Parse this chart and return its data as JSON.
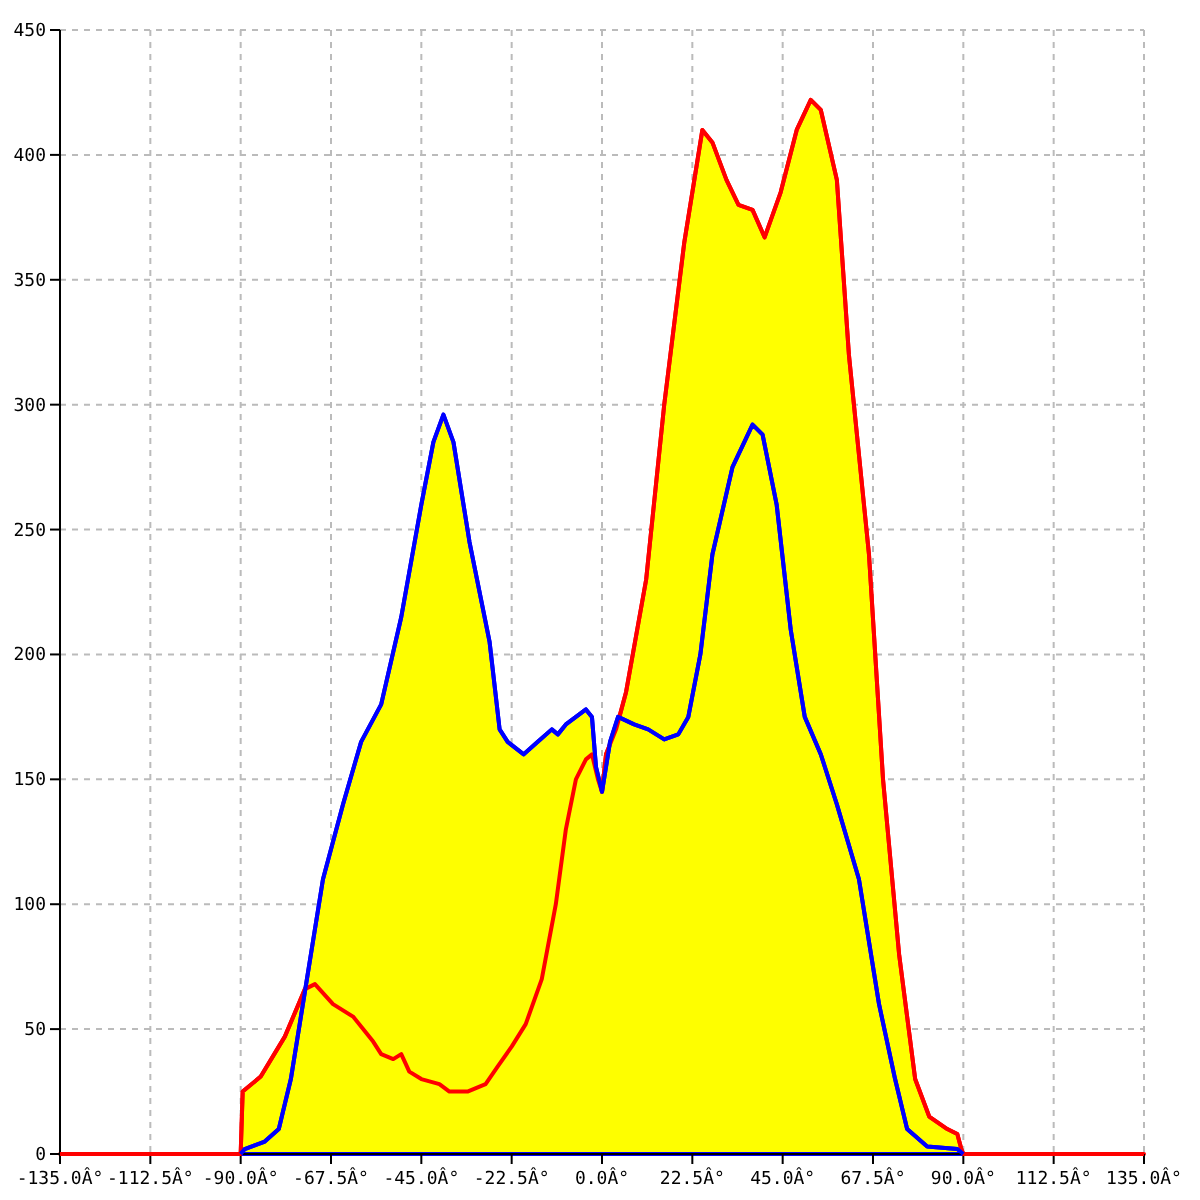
{
  "chart_data": {
    "type": "area",
    "xlim": [
      -135,
      135
    ],
    "ylim": [
      0,
      450
    ],
    "xticks": [
      {
        "value": -135,
        "label": "-135.0Â°"
      },
      {
        "value": -112.5,
        "label": "-112.5Â°"
      },
      {
        "value": -90,
        "label": "-90.0Â°"
      },
      {
        "value": -67.5,
        "label": "-67.5Â°"
      },
      {
        "value": -45,
        "label": "-45.0Â°"
      },
      {
        "value": -22.5,
        "label": "-22.5Â°"
      },
      {
        "value": 0,
        "label": "0.0Â°"
      },
      {
        "value": 22.5,
        "label": "22.5Â°"
      },
      {
        "value": 45,
        "label": "45.0Â°"
      },
      {
        "value": 67.5,
        "label": "67.5Â°"
      },
      {
        "value": 90,
        "label": "90.0Â°"
      },
      {
        "value": 112.5,
        "label": "112.5Â°"
      },
      {
        "value": 135,
        "label": "135.0Â°"
      }
    ],
    "yticks": [
      0,
      50,
      100,
      150,
      200,
      250,
      300,
      350,
      400,
      450
    ],
    "grid": true,
    "line_style": "solid",
    "series": [
      {
        "color": "#ff0000",
        "x": [
          -135,
          -90,
          -89.5,
          -85,
          -79,
          -74,
          -71.5,
          -67,
          -62,
          -57,
          -55,
          -52,
          -50,
          -48,
          -45,
          -40.5,
          -38,
          -33.5,
          -29,
          -26,
          -22.5,
          -19,
          -15,
          -11.5,
          -9,
          -6.5,
          -4,
          -2.5,
          -1,
          0,
          1,
          3.5,
          6,
          11,
          15.5,
          20.5,
          25,
          27.5,
          31,
          34,
          37.5,
          40.5,
          44.5,
          48.5,
          52,
          54.5,
          58.5,
          61.5,
          66.5,
          70,
          74,
          78,
          81.5,
          86,
          88.5,
          89.5,
          90,
          135
        ],
        "values": [
          0,
          0,
          25,
          31,
          47,
          66,
          68,
          60,
          55,
          45,
          40,
          38,
          40,
          33,
          30,
          28,
          25,
          25,
          28,
          35,
          43,
          52,
          70,
          100,
          130,
          150,
          158,
          160,
          150,
          145,
          160,
          170,
          185,
          230,
          300,
          365,
          410,
          405,
          390,
          380,
          378,
          367,
          385,
          410,
          422,
          418,
          390,
          320,
          240,
          150,
          80,
          30,
          15,
          10,
          8,
          2,
          0,
          0
        ]
      },
      {
        "color": "#0000ff",
        "x": [
          -90,
          -89,
          -84,
          -80.5,
          -77.5,
          -74.5,
          -69.5,
          -64.5,
          -60,
          -55,
          -50,
          -45,
          -42,
          -39.5,
          -37,
          -33,
          -28,
          -25.5,
          -23.5,
          -19.5,
          -16,
          -12.5,
          -11,
          -9,
          -4,
          -2.5,
          -1.5,
          0,
          2,
          4,
          8,
          11.5,
          15.5,
          19,
          21.5,
          24.5,
          27.5,
          32.5,
          37.5,
          40,
          43.5,
          47,
          50.5,
          54.5,
          58.5,
          64,
          69,
          73,
          76,
          81,
          88.5,
          90
        ],
        "values": [
          0,
          2,
          5,
          10,
          30,
          60,
          110,
          140,
          165,
          180,
          215,
          260,
          285,
          296,
          285,
          245,
          205,
          170,
          165,
          160,
          165,
          170,
          168,
          172,
          178,
          175,
          155,
          145,
          165,
          175,
          172,
          170,
          166,
          168,
          175,
          200,
          240,
          275,
          292,
          288,
          260,
          210,
          175,
          160,
          140,
          110,
          60,
          30,
          10,
          3,
          2,
          0
        ]
      }
    ]
  }
}
